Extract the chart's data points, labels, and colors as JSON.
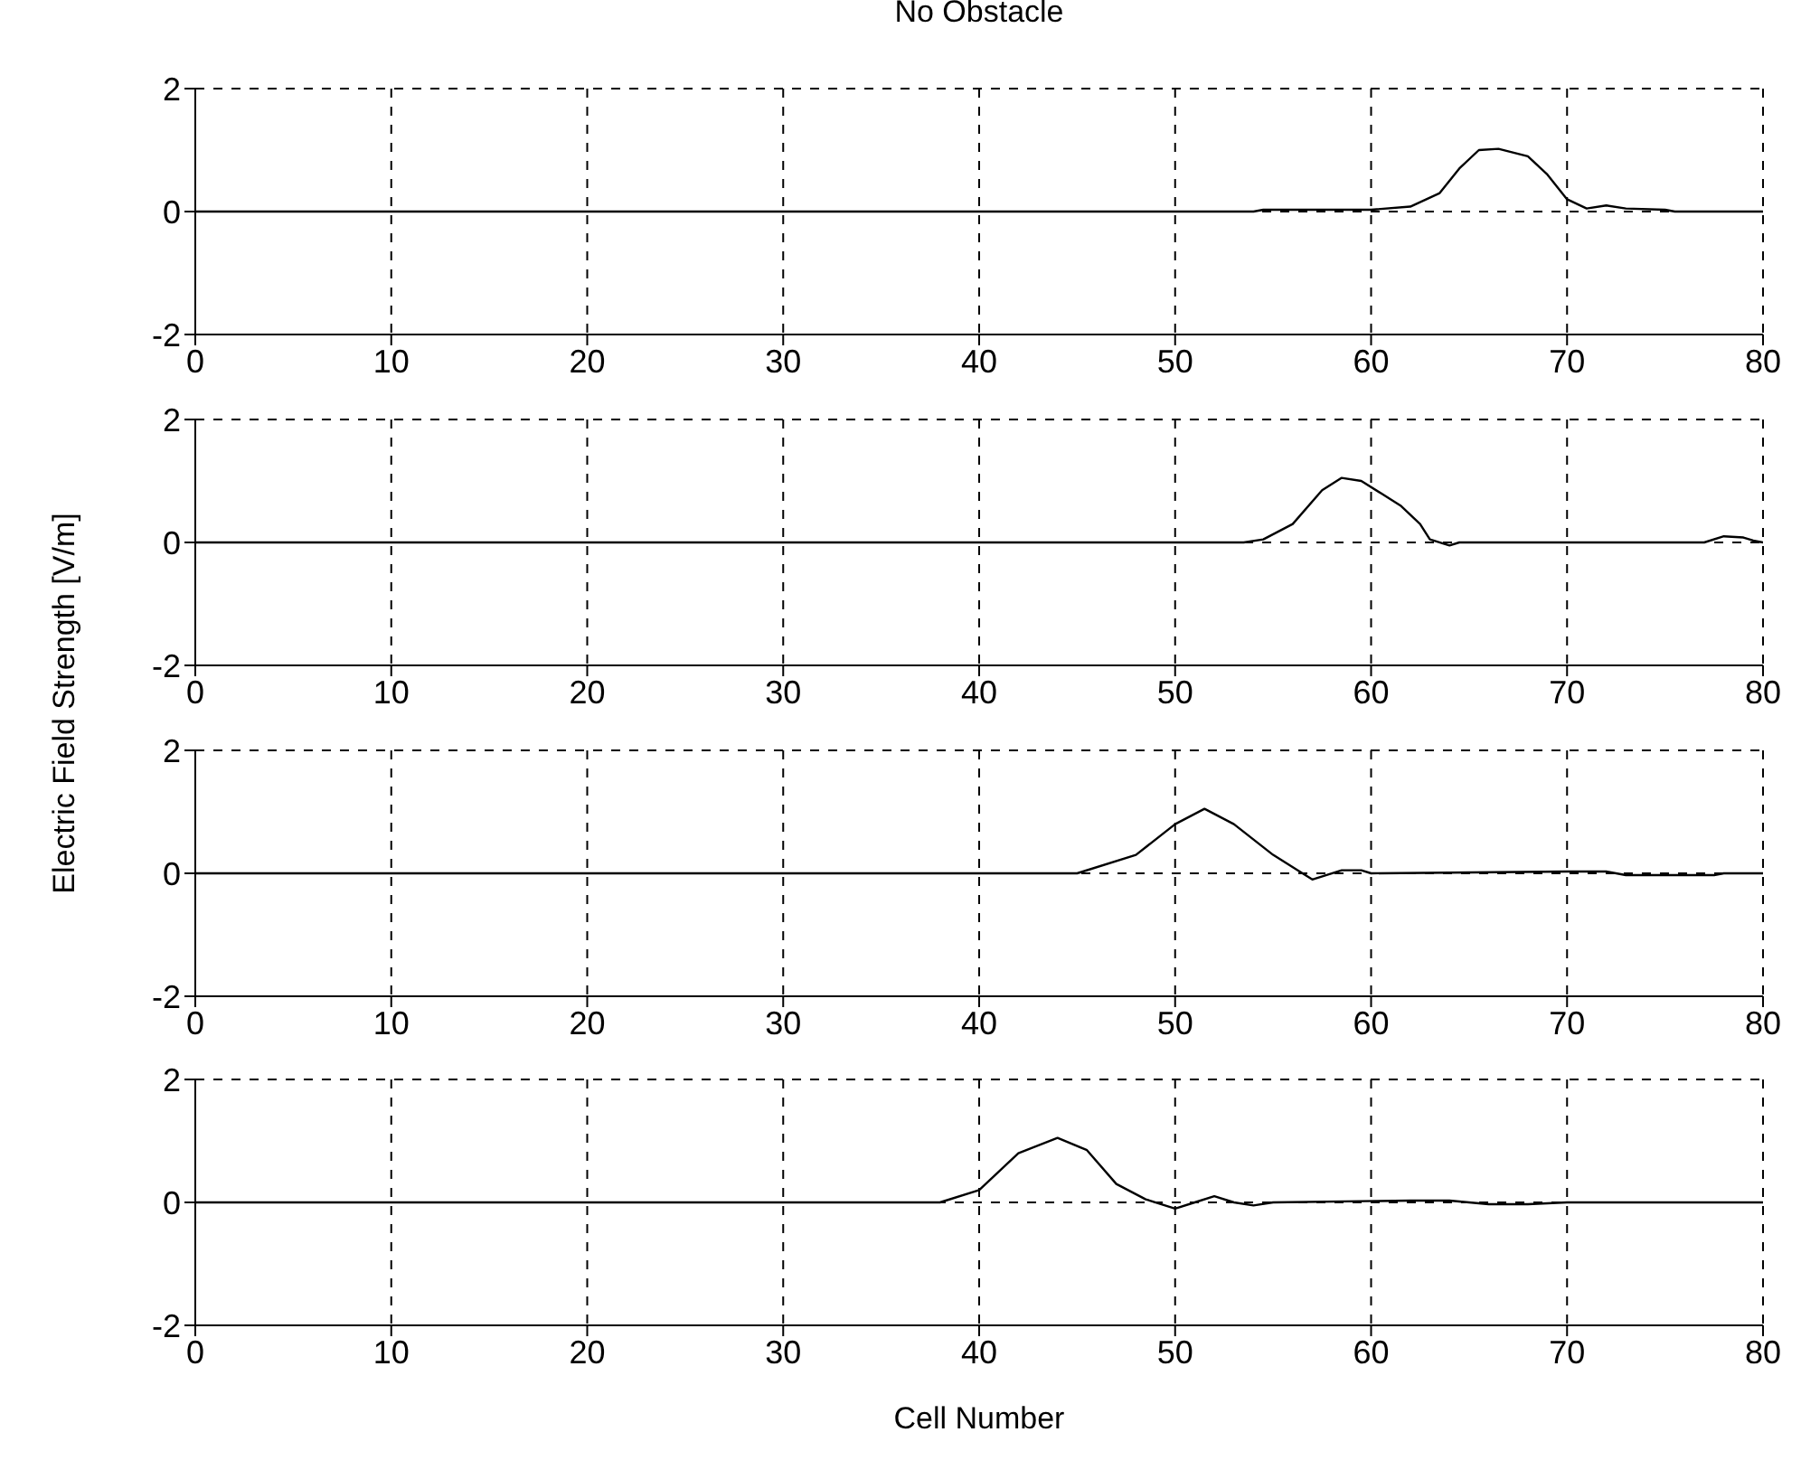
{
  "chart_data": [
    {
      "type": "line",
      "title": "No Obstacle",
      "x": [
        0,
        54,
        54.5,
        60,
        62,
        63.5,
        64.5,
        65.5,
        66.5,
        68,
        69,
        70,
        71,
        72,
        73,
        75,
        75.5,
        80
      ],
      "series": [
        {
          "color": "#000000",
          "values": [
            0,
            0,
            0.03,
            0.03,
            0.08,
            0.3,
            0.7,
            1.0,
            1.02,
            0.9,
            0.6,
            0.2,
            0.05,
            0.1,
            0.05,
            0.03,
            0,
            0
          ]
        }
      ],
      "xlim": [
        0,
        80
      ],
      "xticks": [
        0,
        10,
        20,
        30,
        40,
        50,
        60,
        70,
        80
      ],
      "ylim": [
        -2,
        2
      ],
      "yticks": [
        -2,
        0,
        2
      ],
      "grid": true,
      "legend": false,
      "line_style": "solid",
      "marker": "none"
    },
    {
      "type": "line",
      "ylabel": "Electric Field Strength [V/m]",
      "x": [
        0,
        53.5,
        54.5,
        56,
        57.5,
        58.5,
        59.5,
        60.5,
        61.5,
        62.5,
        63,
        64,
        64.5,
        77,
        78,
        79,
        79.5,
        80
      ],
      "series": [
        {
          "color": "#000000",
          "values": [
            0,
            0,
            0.05,
            0.3,
            0.85,
            1.05,
            1.0,
            0.8,
            0.6,
            0.3,
            0.05,
            -0.05,
            0,
            0,
            0.1,
            0.08,
            0.03,
            0
          ]
        }
      ],
      "xlim": [
        0,
        80
      ],
      "xticks": [
        0,
        10,
        20,
        30,
        40,
        50,
        60,
        70,
        80
      ],
      "ylim": [
        -2,
        2
      ],
      "yticks": [
        -2,
        0,
        2
      ],
      "grid": true,
      "legend": false,
      "line_style": "solid",
      "marker": "none"
    },
    {
      "type": "line",
      "x": [
        0,
        45,
        48,
        50,
        51.5,
        53,
        55,
        56.5,
        57,
        58.5,
        59.5,
        60,
        70,
        72,
        73,
        77.5,
        78,
        80
      ],
      "series": [
        {
          "color": "#000000",
          "values": [
            0,
            0,
            0.3,
            0.8,
            1.05,
            0.8,
            0.3,
            0,
            -0.1,
            0.05,
            0.05,
            0,
            0.03,
            0.03,
            -0.03,
            -0.03,
            0,
            0
          ]
        }
      ],
      "xlim": [
        0,
        80
      ],
      "xticks": [
        0,
        10,
        20,
        30,
        40,
        50,
        60,
        70,
        80
      ],
      "ylim": [
        -2,
        2
      ],
      "yticks": [
        -2,
        0,
        2
      ],
      "grid": true,
      "legend": false,
      "line_style": "solid",
      "marker": "none"
    },
    {
      "type": "line",
      "xlabel": "Cell Number",
      "x": [
        0,
        38,
        40,
        42,
        44,
        45.5,
        47,
        48.5,
        50,
        51,
        52,
        53,
        54,
        55,
        62,
        64,
        66,
        68,
        70,
        80
      ],
      "series": [
        {
          "color": "#000000",
          "values": [
            0,
            0,
            0.2,
            0.8,
            1.05,
            0.85,
            0.3,
            0.05,
            -0.1,
            0,
            0.1,
            0,
            -0.05,
            0,
            0.03,
            0.03,
            -0.03,
            -0.03,
            0,
            0
          ]
        }
      ],
      "xlim": [
        0,
        80
      ],
      "xticks": [
        0,
        10,
        20,
        30,
        40,
        50,
        60,
        70,
        80
      ],
      "ylim": [
        -2,
        2
      ],
      "yticks": [
        -2,
        0,
        2
      ],
      "grid": true,
      "legend": false,
      "line_style": "solid",
      "marker": "none"
    }
  ]
}
